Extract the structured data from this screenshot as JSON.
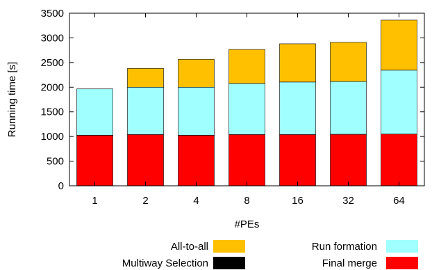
{
  "chart_data": {
    "type": "bar",
    "stacked": true,
    "xlabel": "#PEs",
    "ylabel": "Running time [s]",
    "ylim": [
      0,
      3500
    ],
    "yticks": [
      0,
      500,
      1000,
      1500,
      2000,
      2500,
      3000,
      3500
    ],
    "categories": [
      "1",
      "2",
      "4",
      "8",
      "16",
      "32",
      "64"
    ],
    "grid": false,
    "legend_position": "bottom",
    "series": [
      {
        "name": "Final merge",
        "color": "#ff0000",
        "values": [
          1025,
          1040,
          1025,
          1040,
          1040,
          1045,
          1050
        ]
      },
      {
        "name": "Multiway Selection",
        "color": "#000000",
        "values": [
          0,
          0,
          0,
          0,
          0,
          0,
          0
        ]
      },
      {
        "name": "Run formation",
        "color": "#a0ffff",
        "values": [
          940,
          960,
          975,
          1035,
          1065,
          1070,
          1295
        ]
      },
      {
        "name": "All-to-all",
        "color": "#ffc000",
        "values": [
          0,
          380,
          565,
          690,
          775,
          795,
          1015
        ]
      }
    ],
    "legend": [
      {
        "name": "All-to-all",
        "color": "#ffc000"
      },
      {
        "name": "Run formation",
        "color": "#a0ffff"
      },
      {
        "name": "Multiway Selection",
        "color": "#000000"
      },
      {
        "name": "Final merge",
        "color": "#ff0000"
      }
    ]
  }
}
